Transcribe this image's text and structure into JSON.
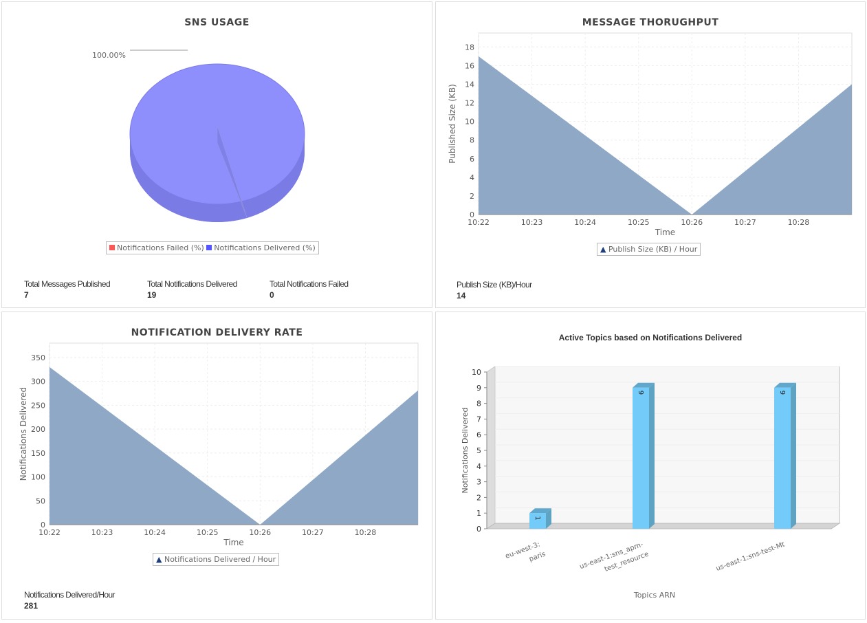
{
  "sns_usage": {
    "title": "SNS USAGE",
    "pie_label": "100.00%",
    "legend": [
      {
        "label": "Notifications Failed (%)",
        "color": "#ff5555"
      },
      {
        "label": "Notifications Delivered (%)",
        "color": "#5555ff"
      }
    ],
    "stats": [
      {
        "label": "Total Messages Published",
        "value": "7"
      },
      {
        "label": "Total Notifications Delivered",
        "value": "19"
      },
      {
        "label": "Total Notifications Failed",
        "value": "0"
      }
    ]
  },
  "throughput": {
    "title": "MESSAGE THORUGHPUT",
    "legend": "Publish Size (KB) / Hour",
    "stat_label": "Publish Size (KB)/Hour",
    "stat_value": "14"
  },
  "delivery": {
    "title": "NOTIFICATION DELIVERY RATE",
    "legend": "Notifications Delivered / Hour",
    "stat_label": "Notifications Delivered/Hour",
    "stat_value": "281"
  },
  "topics": {
    "title": "Active Topics based on Notifications Delivered"
  },
  "chart_data": [
    {
      "type": "pie",
      "title": "SNS USAGE",
      "slices": [
        {
          "label": "Notifications Failed (%)",
          "value": 0
        },
        {
          "label": "Notifications Delivered (%)",
          "value": 100
        }
      ]
    },
    {
      "type": "area",
      "title": "MESSAGE THORUGHPUT",
      "xlabel": "Time",
      "ylabel": "Published Size (KB)",
      "xticks": [
        "10:22",
        "10:23",
        "10:24",
        "10:25",
        "10:26",
        "10:27",
        "10:28"
      ],
      "x": [
        0,
        4,
        7
      ],
      "y": [
        17,
        0,
        14
      ],
      "ylim": [
        0,
        19.5
      ],
      "yticks": [
        0,
        2,
        4,
        6,
        8,
        10,
        12,
        14,
        16,
        18
      ]
    },
    {
      "type": "area",
      "title": "NOTIFICATION DELIVERY RATE",
      "xlabel": "Time",
      "ylabel": "Notifications Delivered",
      "xticks": [
        "10:22",
        "10:23",
        "10:24",
        "10:25",
        "10:26",
        "10:27",
        "10:28"
      ],
      "x": [
        0,
        4,
        7
      ],
      "y": [
        330,
        0,
        281
      ],
      "ylim": [
        0,
        380
      ],
      "yticks": [
        0,
        50,
        100,
        150,
        200,
        250,
        300,
        350
      ]
    },
    {
      "type": "bar",
      "title": "Active Topics based on Notifications Delivered",
      "xlabel": "Topics ARN",
      "ylabel": "Notifications Delivered",
      "categories": [
        "eu-west-3:paris",
        "us-east-1:sns_apm-test_resource",
        "us-east-1:sns-test-Mt"
      ],
      "cat_lines": [
        [
          "eu-west-3:",
          "paris"
        ],
        [
          "us-east-1:sns_apm-",
          "test_resource"
        ],
        [
          "us-east-1:sns-test-Mt"
        ]
      ],
      "values": [
        1,
        9,
        9
      ],
      "ylim": [
        0,
        10
      ],
      "yticks": [
        0,
        1,
        2,
        3,
        4,
        5,
        6,
        7,
        8,
        9,
        10
      ]
    }
  ]
}
